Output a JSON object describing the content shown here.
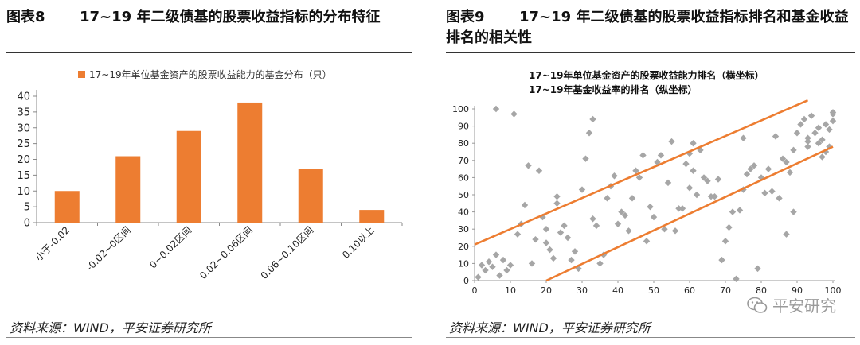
{
  "left_panel": {
    "fig_num": "图表8",
    "fig_title": "17~19 年二级债基的股票收益指标的分布特征",
    "source": "资料来源：WIND，平安证券研究所"
  },
  "right_panel": {
    "fig_num": "图表9",
    "fig_title": "17~19 年二级债基的股票收益指标排名和基金收益排名的相关性",
    "source": "资料来源：WIND，平安证券研究所",
    "watermark": "平安研究"
  },
  "colors": {
    "bar": "#ED7D31",
    "scatter": "#A6A6A6",
    "trend": "#ED7D31"
  },
  "chart_data": [
    {
      "type": "bar",
      "legend": "17~19年单位基金资产的股票收益能力的基金分布（只）",
      "legend_position": "top",
      "categories": [
        "小于-0.02",
        "-0.02~0区间",
        "0~0.02区间",
        "0.02~0.06区间",
        "0.06~0.10区间",
        "0.10以上"
      ],
      "values": [
        10,
        21,
        29,
        38,
        17,
        4
      ],
      "ylim": [
        0,
        40
      ],
      "yticks": [
        0,
        5,
        10,
        15,
        20,
        25,
        30,
        35,
        40
      ],
      "grid": false
    },
    {
      "type": "scatter",
      "xlabel": "17~19年单位基金资产的股票收益能力排名（横坐标）",
      "ylabel": "17~19年基金收益率的排名（纵坐标）",
      "xlim": [
        0,
        100
      ],
      "ylim": [
        0,
        100
      ],
      "xticks": [
        0,
        10,
        20,
        30,
        40,
        50,
        60,
        70,
        80,
        90,
        100
      ],
      "yticks": [
        0,
        10,
        20,
        30,
        40,
        50,
        60,
        70,
        80,
        90,
        100
      ],
      "grid": false,
      "trend_lines": [
        {
          "x": [
            0,
            93
          ],
          "y": [
            21,
            105
          ]
        },
        {
          "x": [
            20,
            100
          ],
          "y": [
            0,
            78
          ]
        }
      ],
      "points": [
        [
          1,
          2
        ],
        [
          2,
          9
        ],
        [
          3,
          6
        ],
        [
          4,
          11
        ],
        [
          5,
          8
        ],
        [
          6,
          100
        ],
        [
          6,
          15
        ],
        [
          7,
          3
        ],
        [
          8,
          12
        ],
        [
          9,
          6
        ],
        [
          10,
          9
        ],
        [
          11,
          97
        ],
        [
          12,
          27
        ],
        [
          13,
          33
        ],
        [
          14,
          44
        ],
        [
          15,
          67
        ],
        [
          16,
          10
        ],
        [
          17,
          24
        ],
        [
          18,
          64
        ],
        [
          19,
          37
        ],
        [
          20,
          30
        ],
        [
          20,
          22
        ],
        [
          21,
          18
        ],
        [
          22,
          13
        ],
        [
          23,
          45
        ],
        [
          23,
          49
        ],
        [
          24,
          28
        ],
        [
          25,
          32
        ],
        [
          26,
          25
        ],
        [
          27,
          12
        ],
        [
          28,
          17
        ],
        [
          29,
          7
        ],
        [
          30,
          53
        ],
        [
          31,
          71
        ],
        [
          32,
          86
        ],
        [
          33,
          36
        ],
        [
          33,
          94
        ],
        [
          34,
          32
        ],
        [
          35,
          10
        ],
        [
          36,
          15
        ],
        [
          37,
          48
        ],
        [
          38,
          55
        ],
        [
          39,
          61
        ],
        [
          40,
          33
        ],
        [
          41,
          40
        ],
        [
          42,
          38
        ],
        [
          43,
          29
        ],
        [
          44,
          48
        ],
        [
          45,
          64
        ],
        [
          46,
          60
        ],
        [
          47,
          73
        ],
        [
          48,
          23
        ],
        [
          49,
          43
        ],
        [
          50,
          37
        ],
        [
          51,
          69
        ],
        [
          52,
          73
        ],
        [
          53,
          30
        ],
        [
          54,
          57
        ],
        [
          55,
          81
        ],
        [
          56,
          29
        ],
        [
          57,
          42
        ],
        [
          58,
          42
        ],
        [
          59,
          68
        ],
        [
          60,
          74
        ],
        [
          60,
          54
        ],
        [
          61,
          64
        ],
        [
          62,
          50
        ],
        [
          63,
          76
        ],
        [
          64,
          60
        ],
        [
          65,
          58
        ],
        [
          66,
          49
        ],
        [
          67,
          49
        ],
        [
          68,
          59
        ],
        [
          69,
          12
        ],
        [
          70,
          23
        ],
        [
          71,
          31
        ],
        [
          72,
          40
        ],
        [
          73,
          1
        ],
        [
          74,
          41
        ],
        [
          75,
          53
        ],
        [
          75,
          83
        ],
        [
          76,
          62
        ],
        [
          77,
          65
        ],
        [
          78,
          67
        ],
        [
          79,
          7
        ],
        [
          80,
          60
        ],
        [
          81,
          51
        ],
        [
          82,
          65
        ],
        [
          83,
          52
        ],
        [
          84,
          84
        ],
        [
          85,
          48
        ],
        [
          86,
          71
        ],
        [
          87,
          27
        ],
        [
          88,
          63
        ],
        [
          89,
          40
        ],
        [
          90,
          86
        ],
        [
          91,
          91
        ],
        [
          92,
          94
        ],
        [
          93,
          78
        ],
        [
          93,
          83
        ],
        [
          94,
          96
        ],
        [
          95,
          86
        ],
        [
          96,
          80
        ],
        [
          96,
          89
        ],
        [
          97,
          72
        ],
        [
          97,
          82
        ],
        [
          98,
          91
        ],
        [
          98,
          75
        ],
        [
          99,
          88
        ],
        [
          99,
          78
        ],
        [
          100,
          93
        ],
        [
          100,
          98
        ],
        [
          61,
          80
        ],
        [
          93,
          81
        ],
        [
          87,
          69
        ],
        [
          89,
          76
        ],
        [
          100,
          97
        ]
      ]
    }
  ]
}
